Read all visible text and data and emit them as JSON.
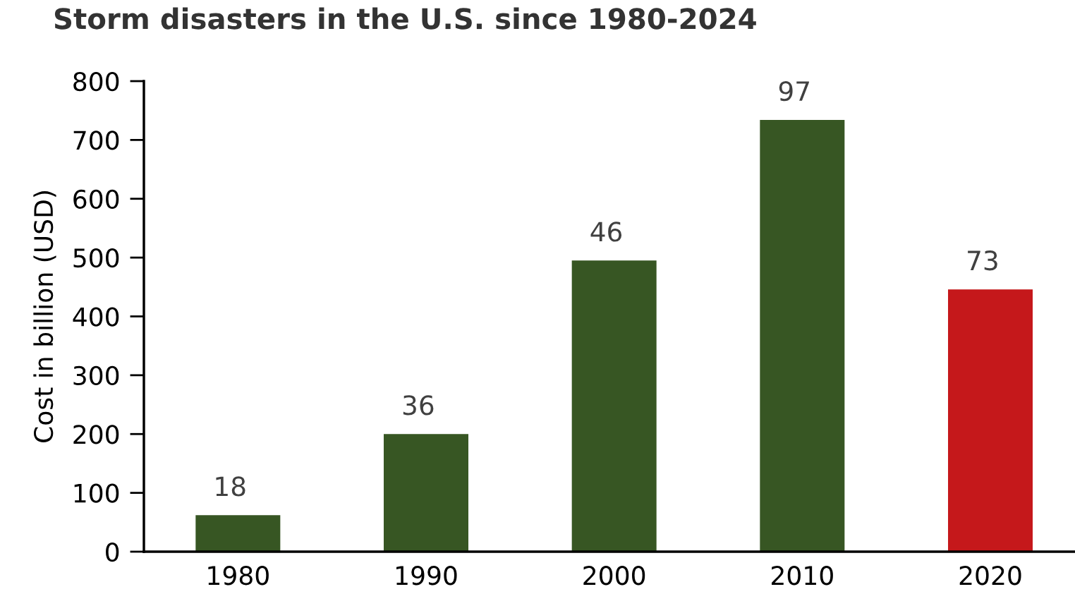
{
  "chart_data": {
    "type": "bar",
    "title": "Storm disasters in the U.S. since 1980-2024",
    "ylabel": "Cost in billion (USD)",
    "categories": [
      "1980",
      "1990",
      "2000",
      "2010",
      "2020"
    ],
    "values": [
      62,
      200,
      495,
      734,
      446
    ],
    "colors": [
      "#375623",
      "#375623",
      "#375623",
      "#375623",
      "#c5181b"
    ],
    "annotations": [
      {
        "text": "18",
        "x": "1980",
        "y": 62
      },
      {
        "text": "36",
        "x": "1990",
        "y": 200
      },
      {
        "text": "46",
        "x": "2000",
        "y": 495
      },
      {
        "text": "97",
        "x": "2010",
        "y": 734
      },
      {
        "text": "73",
        "x": "2020",
        "y": 446
      }
    ],
    "ylim": [
      0,
      800
    ],
    "yticks": [
      0,
      100,
      200,
      300,
      400,
      500,
      600,
      700,
      800
    ],
    "grid": false,
    "legend": false
  }
}
